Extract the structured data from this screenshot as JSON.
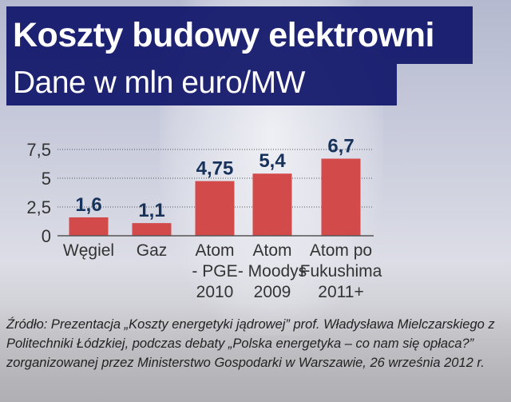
{
  "title": "Koszty budowy elektrowni",
  "subtitle": "Dane w mln euro/MW",
  "chart_data": {
    "type": "bar",
    "categories": [
      [
        "Węgiel"
      ],
      [
        "Gaz"
      ],
      [
        "Atom",
        "- PGE",
        "2010"
      ],
      [
        "Atom",
        "- Moodys",
        "2009"
      ],
      [
        "Atom po",
        "Fukushima",
        "2011+"
      ]
    ],
    "values": [
      1.6,
      1.1,
      4.75,
      5.4,
      6.7
    ],
    "value_labels": [
      "1,6",
      "1,1",
      "4,75",
      "5,4",
      "6,7"
    ],
    "yticks": [
      0,
      2.5,
      5,
      7.5
    ],
    "ytick_labels": [
      "0",
      "2,5",
      "5",
      "7,5"
    ],
    "ylim": [
      0,
      7.5
    ],
    "grid": true,
    "bar_color": "#d24a4a"
  },
  "source": "Źródło: Prezentacja „Koszty energetyki jądrowej” prof. Władysława Mielczarskiego z Politechniki Łódzkiej, podczas debaty „Polska energetyka – co nam się opłaca?” zorganizowanej przez Ministerstwo Gospodarki w Warszawie, 26 września 2012 r."
}
